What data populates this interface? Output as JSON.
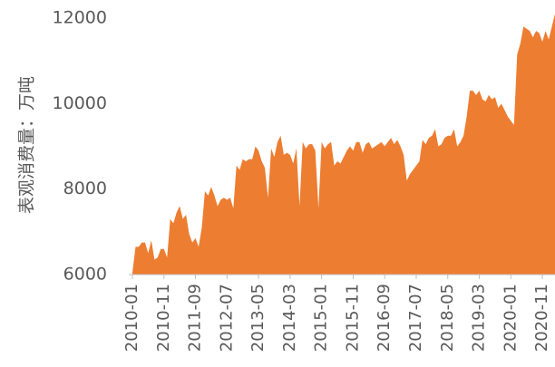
{
  "chart_data": {
    "type": "area",
    "ylabel": "表观消费量：万吨",
    "color": "#ED7D31",
    "x": [
      "2010-01",
      "2010-02",
      "2010-03",
      "2010-04",
      "2010-05",
      "2010-06",
      "2010-07",
      "2010-08",
      "2010-09",
      "2010-10",
      "2010-11",
      "2010-12",
      "2011-01",
      "2011-02",
      "2011-03",
      "2011-04",
      "2011-05",
      "2011-06",
      "2011-07",
      "2011-08",
      "2011-09",
      "2011-10",
      "2011-11",
      "2011-12",
      "2012-01",
      "2012-02",
      "2012-03",
      "2012-04",
      "2012-05",
      "2012-06",
      "2012-07",
      "2012-08",
      "2012-09",
      "2012-10",
      "2012-11",
      "2012-12",
      "2013-01",
      "2013-02",
      "2013-03",
      "2013-04",
      "2013-05",
      "2013-06",
      "2013-07",
      "2013-08",
      "2013-09",
      "2013-10",
      "2013-11",
      "2013-12",
      "2014-01",
      "2014-02",
      "2014-03",
      "2014-04",
      "2014-05",
      "2014-06",
      "2014-07",
      "2014-08",
      "2014-09",
      "2014-10",
      "2014-11",
      "2014-12",
      "2015-01",
      "2015-02",
      "2015-03",
      "2015-04",
      "2015-05",
      "2015-06",
      "2015-07",
      "2015-08",
      "2015-09",
      "2015-10",
      "2015-11",
      "2015-12",
      "2016-01",
      "2016-02",
      "2016-03",
      "2016-04",
      "2016-05",
      "2016-06",
      "2016-07",
      "2016-08",
      "2016-09",
      "2016-10",
      "2016-11",
      "2016-12",
      "2017-01",
      "2017-02",
      "2017-03",
      "2017-04",
      "2017-05",
      "2017-06",
      "2017-07",
      "2017-08",
      "2017-09",
      "2017-10",
      "2017-11",
      "2017-12",
      "2018-01",
      "2018-02",
      "2018-03",
      "2018-04",
      "2018-05",
      "2018-06",
      "2018-07",
      "2018-08",
      "2018-09",
      "2018-10",
      "2018-11",
      "2018-12",
      "2019-01",
      "2019-02",
      "2019-03",
      "2019-04",
      "2019-05",
      "2019-06",
      "2019-07",
      "2019-08",
      "2019-09",
      "2019-10",
      "2019-11",
      "2019-12",
      "2020-01",
      "2020-02",
      "2020-03",
      "2020-04",
      "2020-05",
      "2020-06",
      "2020-07",
      "2020-08",
      "2020-09",
      "2020-10",
      "2020-11",
      "2020-12",
      "2021-01",
      "2021-02",
      "2021-03"
    ],
    "values": [
      6050,
      6650,
      6650,
      6750,
      6750,
      6500,
      6800,
      6350,
      6400,
      6600,
      6600,
      6400,
      7300,
      7200,
      7450,
      7600,
      7300,
      7400,
      6950,
      6750,
      6850,
      6650,
      7100,
      7950,
      7850,
      8050,
      7850,
      7600,
      7750,
      7800,
      7750,
      7800,
      7550,
      8550,
      8450,
      8700,
      8650,
      8700,
      8700,
      9000,
      8900,
      8650,
      8500,
      7800,
      8950,
      8750,
      9100,
      9250,
      8800,
      8850,
      8800,
      8600,
      8950,
      7600,
      9100,
      8950,
      9050,
      9050,
      8900,
      7550,
      9100,
      8950,
      9050,
      9100,
      8550,
      8650,
      8600,
      8750,
      8900,
      9000,
      8900,
      9100,
      9100,
      8850,
      9050,
      9100,
      8950,
      9000,
      9050,
      9100,
      9000,
      9100,
      9200,
      9050,
      9150,
      9000,
      8800,
      8200,
      8350,
      8450,
      8550,
      8650,
      9150,
      9050,
      9200,
      9250,
      9400,
      9000,
      9050,
      9200,
      9250,
      9250,
      9400,
      9000,
      9100,
      9250,
      9700,
      10300,
      10300,
      10200,
      10300,
      10100,
      10050,
      10200,
      10100,
      10150,
      9900,
      10000,
      9850,
      9700,
      9600,
      9500,
      11150,
      11400,
      11800,
      11750,
      11700,
      11550,
      11700,
      11650,
      11450,
      11700,
      11500,
      11800,
      12100
    ],
    "xticks": [
      "2010-01",
      "2010-11",
      "2011-09",
      "2012-07",
      "2013-05",
      "2014-03",
      "2015-01",
      "2015-11",
      "2016-09",
      "2017-07",
      "2018-05",
      "2019-03",
      "2020-01",
      "2020-11"
    ],
    "ylim": [
      6000,
      12000
    ],
    "yticks": [
      6000,
      8000,
      10000,
      12000
    ]
  }
}
